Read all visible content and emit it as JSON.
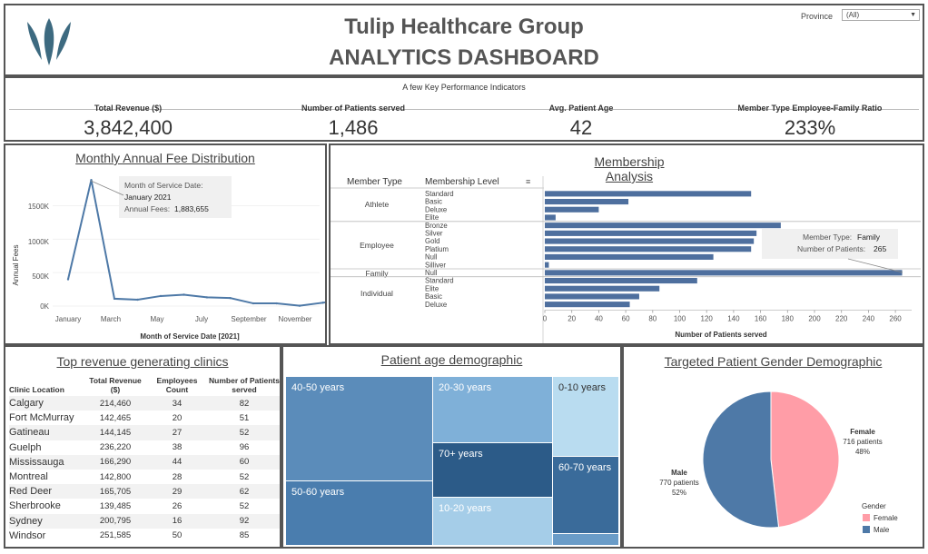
{
  "header": {
    "title": "Tulip Healthcare Group",
    "subtitle": "ANALYTICS DASHBOARD",
    "filter_label": "Province",
    "filter_value": "(All)",
    "brand_color": "#3d6a80"
  },
  "kpis": {
    "section_title": "A few Key Performance Indicators",
    "items": [
      {
        "label": "Total Revenue ($)",
        "value": "3,842,400"
      },
      {
        "label": "Number of Patients served",
        "value": "1,486"
      },
      {
        "label": "Avg. Patient Age",
        "value": "42"
      },
      {
        "label": "Member Type Employee-Family Ratio",
        "value": "233%"
      }
    ]
  },
  "monthly": {
    "title": "Monthly Annual Fee Distribution",
    "ylabel": "Annual Fees",
    "xlabel": "Month of Service Date [2021]",
    "yticks": [
      "1500K",
      "1000K",
      "500K",
      "0K"
    ],
    "xticks": [
      "January",
      "March",
      "May",
      "July",
      "September",
      "November"
    ],
    "tooltip": {
      "l1": "Month of Service Date:",
      "l2": "January 2021",
      "l3_label": "Annual Fees:",
      "l3_value": "1,883,655"
    }
  },
  "membership": {
    "title": "Membership Analysis",
    "col1": "Member Type",
    "col2": "Membership Level",
    "xlabel": "Number of Patients served",
    "xticks": [
      "0",
      "20",
      "40",
      "60",
      "80",
      "100",
      "120",
      "140",
      "160",
      "180",
      "200",
      "220",
      "240",
      "260"
    ],
    "groups": [
      "Athlete",
      "Employee",
      "Family",
      "Individual"
    ],
    "levels": [
      "Standard",
      "Basic",
      "Deluxe",
      "Elite",
      "Bronze",
      "Silver",
      "Gold",
      "Platium",
      "Null",
      "Silliver",
      "Null",
      "Standard",
      "Elite",
      "Basic",
      "Deluxe"
    ],
    "tooltip": {
      "l1_label": "Member Type:",
      "l1_value": "Family",
      "l2_label": "Number of Patients:",
      "l2_value": "265"
    }
  },
  "chart_data": [
    {
      "type": "line",
      "title": "Monthly Annual Fee Distribution",
      "xlabel": "Month of Service Date [2021]",
      "ylabel": "Annual Fees",
      "x": [
        "Dec 2020",
        "January",
        "February",
        "March",
        "April",
        "May",
        "June",
        "July",
        "August",
        "September",
        "October",
        "November",
        "December"
      ],
      "values": [
        400000,
        1883655,
        110000,
        95000,
        150000,
        170000,
        130000,
        120000,
        40000,
        40000,
        5000,
        50000,
        90000
      ],
      "ylim": [
        0,
        1900000
      ]
    },
    {
      "type": "bar",
      "orientation": "horizontal",
      "title": "Membership Analysis",
      "xlabel": "Number of Patients served",
      "categories": [
        "Athlete/Standard",
        "Athlete/Basic",
        "Athlete/Deluxe",
        "Athlete/Elite",
        "Employee/Bronze",
        "Employee/Silver",
        "Employee/Gold",
        "Employee/Platium",
        "Employee/Null",
        "Employee/Silliver",
        "Family/Null",
        "Individual/Standard",
        "Individual/Elite",
        "Individual/Basic",
        "Individual/Deluxe"
      ],
      "values": [
        153,
        62,
        40,
        8,
        175,
        157,
        155,
        153,
        125,
        3,
        265,
        113,
        85,
        70,
        63
      ],
      "xlim": [
        0,
        270
      ]
    },
    {
      "type": "table",
      "title": "Top revenue generating clinics",
      "columns": [
        "Clinic Location",
        "Total Revenue ($)",
        "Employees Count",
        "Number of Patients served"
      ],
      "rows": [
        [
          "Calgary",
          "214,460",
          "34",
          "82"
        ],
        [
          "Fort McMurray",
          "142,465",
          "20",
          "51"
        ],
        [
          "Gatineau",
          "144,145",
          "27",
          "52"
        ],
        [
          "Guelph",
          "236,220",
          "38",
          "96"
        ],
        [
          "Mississauga",
          "166,290",
          "44",
          "60"
        ],
        [
          "Montreal",
          "142,800",
          "28",
          "52"
        ],
        [
          "Red Deer",
          "165,705",
          "29",
          "62"
        ],
        [
          "Sherbrooke",
          "139,485",
          "26",
          "52"
        ],
        [
          "Sydney",
          "200,795",
          "16",
          "92"
        ],
        [
          "Windsor",
          "251,585",
          "50",
          "85"
        ]
      ]
    },
    {
      "type": "heatmap",
      "title": "Patient age demographic",
      "categories": [
        "40-50 years",
        "50-60 years",
        "20-30 years",
        "70+ years",
        "10-20 years",
        "0-10 years",
        "60-70 years"
      ]
    },
    {
      "type": "pie",
      "title": "Targeted Patient Gender Demographic",
      "legend_title": "Gender",
      "slices": [
        {
          "name": "Female",
          "value": 716,
          "label": "716 patients",
          "pct": "48%",
          "color": "#ff9da7"
        },
        {
          "name": "Male",
          "value": 770,
          "label": "770 patients",
          "pct": "52%",
          "color": "#4e79a7"
        }
      ]
    }
  ]
}
